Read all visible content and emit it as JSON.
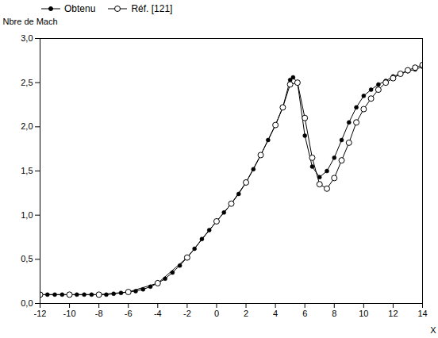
{
  "chart_data": {
    "type": "line",
    "title": "",
    "xlabel": "X",
    "ylabel": "Nbre de Mach",
    "xlim": [
      -12,
      14
    ],
    "ylim": [
      0.0,
      3.0
    ],
    "xticks": [
      -12,
      -10,
      -8,
      -6,
      -4,
      -2,
      0,
      2,
      4,
      6,
      8,
      10,
      12,
      14
    ],
    "yticks": [
      {
        "value": 0.0,
        "label": "0,0"
      },
      {
        "value": 0.5,
        "label": "0,5"
      },
      {
        "value": 1.0,
        "label": "1,0"
      },
      {
        "value": 1.5,
        "label": "1,5"
      },
      {
        "value": 2.0,
        "label": "2,0"
      },
      {
        "value": 2.5,
        "label": "2,5"
      },
      {
        "value": 3.0,
        "label": "3,0"
      }
    ],
    "grid": false,
    "legend": "upper left",
    "series": [
      {
        "name": "Obtenu",
        "color": "black",
        "marker": "filled_circle",
        "line_style": "solid",
        "x": [
          -12,
          -11.5,
          -11,
          -10.5,
          -10,
          -9.5,
          -9,
          -8.5,
          -8,
          -7.5,
          -7,
          -6.5,
          -6,
          -5.5,
          -5,
          -4.5,
          -4,
          -3.5,
          -3,
          -2.5,
          -2,
          -1.5,
          -1,
          -0.5,
          0,
          0.5,
          1,
          1.5,
          2,
          2.5,
          3,
          3.5,
          4,
          4.5,
          5,
          5.2,
          5.5,
          6.0,
          6.5,
          7,
          7.5,
          8,
          8.5,
          9,
          9.5,
          10,
          10.5,
          11,
          11.5,
          12,
          12.5,
          13,
          13.5,
          14
        ],
        "values": [
          0.1,
          0.1,
          0.1,
          0.1,
          0.1,
          0.1,
          0.1,
          0.1,
          0.1,
          0.1,
          0.11,
          0.12,
          0.13,
          0.14,
          0.16,
          0.19,
          0.23,
          0.28,
          0.35,
          0.43,
          0.52,
          0.62,
          0.73,
          0.83,
          0.93,
          1.03,
          1.13,
          1.24,
          1.37,
          1.52,
          1.68,
          1.85,
          2.02,
          2.22,
          2.53,
          2.56,
          2.5,
          1.9,
          1.55,
          1.43,
          1.5,
          1.65,
          1.85,
          2.05,
          2.22,
          2.35,
          2.42,
          2.48,
          2.52,
          2.57,
          2.6,
          2.63,
          2.65,
          2.68
        ]
      },
      {
        "name": "Réf. [121]",
        "color": "black",
        "marker": "open_circle",
        "line_style": "solid",
        "x": [
          -12,
          -10,
          -8,
          -6,
          -4,
          -2,
          0,
          1,
          2,
          3,
          4,
          4.5,
          5,
          5.5,
          6,
          6.5,
          7,
          7.5,
          8,
          8.5,
          9,
          9.5,
          10,
          10.5,
          11,
          11.5,
          12,
          12.5,
          13,
          13.5,
          14
        ],
        "values": [
          0.1,
          0.1,
          0.1,
          0.13,
          0.23,
          0.52,
          0.93,
          1.13,
          1.37,
          1.68,
          2.02,
          2.22,
          2.48,
          2.5,
          2.1,
          1.65,
          1.35,
          1.3,
          1.42,
          1.62,
          1.82,
          2.05,
          2.2,
          2.32,
          2.42,
          2.5,
          2.55,
          2.6,
          2.64,
          2.67,
          2.7
        ]
      }
    ]
  }
}
